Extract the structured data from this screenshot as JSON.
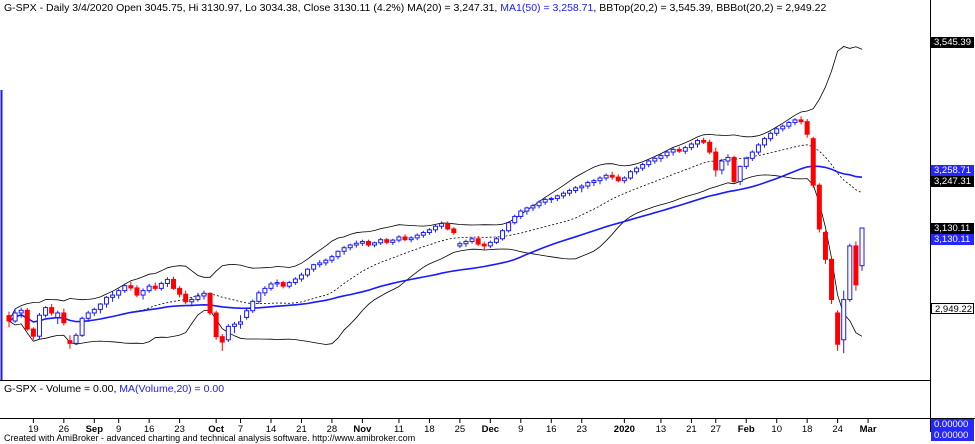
{
  "header": {
    "symbol": "G-SPX",
    "prefix": " - Daily 3/4/2020 Open 3045.75, Hi 3130.97, Lo 3034.38, Close 3130.11 (4.2%) MA(20) = 3,247.31, ",
    "ma50_text": "MA1(50) = 3,258.71",
    "suffix": ", BBTop(20,2) = 3,545.39, BBBot(20,2) = 2,949.22"
  },
  "volume_header": {
    "symbol": "G-SPX",
    "volume_text": " - Volume = 0.00, ",
    "ma_text": "MA(Volume,20) = 0.00"
  },
  "footer": "Created with AmiBroker - advanced charting and technical analysis software. http://www.amibroker.com",
  "price_labels": [
    {
      "text": "3,545.39",
      "value": 3545.39,
      "style": "black"
    },
    {
      "text": "3,258.71",
      "value": 3258.71,
      "style": "blue"
    },
    {
      "text": "3,247.31",
      "value": 3247.31,
      "style": "black"
    },
    {
      "text": "3,130.11",
      "value": 3130.11,
      "style": "black"
    },
    {
      "text": "3,130.11",
      "value": 3130.11,
      "style": "blue"
    },
    {
      "text": "2,949.22",
      "value": 2949.22,
      "style": "white"
    }
  ],
  "volume_labels": [
    {
      "text": "0.00000",
      "style": "blue"
    },
    {
      "text": "0.00000",
      "style": "blue"
    }
  ],
  "colors": {
    "up": "#1a1aff",
    "down": "#ff0000",
    "ma50": "#1a1aff",
    "bands": "#000000",
    "ma20": "#000000"
  },
  "chart_data": {
    "type": "candlestick",
    "price_range": [
      2790,
      3600
    ],
    "x_ticks": [
      {
        "label": "19",
        "index": 4,
        "bold": false
      },
      {
        "label": "26",
        "index": 9,
        "bold": false
      },
      {
        "label": "Sep",
        "index": 14,
        "bold": true
      },
      {
        "label": "9",
        "index": 18,
        "bold": false
      },
      {
        "label": "16",
        "index": 23,
        "bold": false
      },
      {
        "label": "23",
        "index": 28,
        "bold": false
      },
      {
        "label": "Oct",
        "index": 34,
        "bold": true
      },
      {
        "label": "7",
        "index": 38,
        "bold": false
      },
      {
        "label": "14",
        "index": 43,
        "bold": false
      },
      {
        "label": "21",
        "index": 48,
        "bold": false
      },
      {
        "label": "28",
        "index": 53,
        "bold": false
      },
      {
        "label": "Nov",
        "index": 58,
        "bold": true
      },
      {
        "label": "11",
        "index": 64,
        "bold": false
      },
      {
        "label": "18",
        "index": 69,
        "bold": false
      },
      {
        "label": "25",
        "index": 74,
        "bold": false
      },
      {
        "label": "Dec",
        "index": 79,
        "bold": true
      },
      {
        "label": "9",
        "index": 84,
        "bold": false
      },
      {
        "label": "16",
        "index": 89,
        "bold": false
      },
      {
        "label": "23",
        "index": 94,
        "bold": false
      },
      {
        "label": "2020",
        "index": 101,
        "bold": true
      },
      {
        "label": "13",
        "index": 107,
        "bold": false
      },
      {
        "label": "21",
        "index": 112,
        "bold": false
      },
      {
        "label": "27",
        "index": 116,
        "bold": false
      },
      {
        "label": "Feb",
        "index": 121,
        "bold": true
      },
      {
        "label": "10",
        "index": 126,
        "bold": false
      },
      {
        "label": "18",
        "index": 131,
        "bold": false
      },
      {
        "label": "24",
        "index": 136,
        "bold": false
      },
      {
        "label": "Mar",
        "index": 141,
        "bold": true
      }
    ],
    "candles": [
      [
        2934,
        2943,
        2908,
        2922
      ],
      [
        2922,
        2950,
        2918,
        2940
      ],
      [
        2940,
        2952,
        2929,
        2946
      ],
      [
        2946,
        2951,
        2900,
        2904
      ],
      [
        2904,
        2908,
        2880,
        2888
      ],
      [
        2888,
        2940,
        2882,
        2935
      ],
      [
        2935,
        2955,
        2930,
        2952
      ],
      [
        2952,
        2960,
        2934,
        2940
      ],
      [
        2930,
        2945,
        2915,
        2940
      ],
      [
        2940,
        2950,
        2912,
        2918
      ],
      [
        2878,
        2890,
        2860,
        2872
      ],
      [
        2872,
        2895,
        2868,
        2890
      ],
      [
        2890,
        2932,
        2886,
        2928
      ],
      [
        2928,
        2945,
        2920,
        2940
      ],
      [
        2940,
        2952,
        2933,
        2948
      ],
      [
        2948,
        2962,
        2939,
        2960
      ],
      [
        2960,
        2978,
        2952,
        2975
      ],
      [
        2975,
        2988,
        2965,
        2980
      ],
      [
        2980,
        2994,
        2972,
        2990
      ],
      [
        2990,
        3006,
        2985,
        3001
      ],
      [
        3001,
        3010,
        2990,
        2996
      ],
      [
        2996,
        3002,
        2975,
        2980
      ],
      [
        2980,
        2995,
        2970,
        2990
      ],
      [
        2990,
        3005,
        2985,
        3000
      ],
      [
        3000,
        3008,
        2990,
        2995
      ],
      [
        2995,
        3010,
        2990,
        3006
      ],
      [
        3006,
        3020,
        2998,
        3015
      ],
      [
        3015,
        3021,
        2992,
        2995
      ],
      [
        2995,
        3000,
        2975,
        2982
      ],
      [
        2982,
        2990,
        2960,
        2965
      ],
      [
        2965,
        2975,
        2955,
        2970
      ],
      [
        2970,
        2985,
        2965,
        2978
      ],
      [
        2978,
        2990,
        2970,
        2984
      ],
      [
        2984,
        2986,
        2935,
        2940
      ],
      [
        2940,
        2945,
        2880,
        2887
      ],
      [
        2887,
        2893,
        2855,
        2875
      ],
      [
        2880,
        2915,
        2875,
        2910
      ],
      [
        2910,
        2920,
        2895,
        2915
      ],
      [
        2915,
        2935,
        2905,
        2920
      ],
      [
        2930,
        2950,
        2925,
        2945
      ],
      [
        2945,
        2970,
        2940,
        2966
      ],
      [
        2966,
        2990,
        2960,
        2985
      ],
      [
        2985,
        3000,
        2978,
        2995
      ],
      [
        2995,
        3010,
        2990,
        3005
      ],
      [
        3005,
        3015,
        2998,
        3008
      ],
      [
        3008,
        3012,
        2995,
        3000
      ],
      [
        3000,
        3012,
        2995,
        3008
      ],
      [
        3008,
        3020,
        3003,
        3016
      ],
      [
        3016,
        3030,
        3010,
        3025
      ],
      [
        3025,
        3040,
        3020,
        3038
      ],
      [
        3038,
        3050,
        3032,
        3048
      ],
      [
        3048,
        3058,
        3042,
        3052
      ],
      [
        3052,
        3062,
        3046,
        3058
      ],
      [
        3058,
        3070,
        3052,
        3066
      ],
      [
        3066,
        3080,
        3060,
        3078
      ],
      [
        3078,
        3090,
        3070,
        3086
      ],
      [
        3086,
        3095,
        3080,
        3092
      ],
      [
        3092,
        3102,
        3086,
        3096
      ],
      [
        3096,
        3104,
        3090,
        3100
      ],
      [
        3100,
        3104,
        3088,
        3092
      ],
      [
        3092,
        3100,
        3087,
        3097
      ],
      [
        3097,
        3108,
        3092,
        3104
      ],
      [
        3104,
        3108,
        3094,
        3098
      ],
      [
        3098,
        3106,
        3092,
        3103
      ],
      [
        3103,
        3114,
        3098,
        3110
      ],
      [
        3110,
        3116,
        3100,
        3104
      ],
      [
        3104,
        3112,
        3098,
        3108
      ],
      [
        3108,
        3118,
        3103,
        3114
      ],
      [
        3114,
        3124,
        3108,
        3120
      ],
      [
        3120,
        3130,
        3115,
        3126
      ],
      [
        3126,
        3138,
        3120,
        3134
      ],
      [
        3134,
        3145,
        3128,
        3140
      ],
      [
        3140,
        3145,
        3125,
        3128
      ],
      [
        3128,
        3132,
        3115,
        3120
      ],
      [
        3090,
        3100,
        3085,
        3095
      ],
      [
        3095,
        3104,
        3088,
        3100
      ],
      [
        3100,
        3110,
        3095,
        3106
      ],
      [
        3106,
        3112,
        3090,
        3094
      ],
      [
        3094,
        3100,
        3082,
        3090
      ],
      [
        3090,
        3102,
        3085,
        3098
      ],
      [
        3098,
        3110,
        3094,
        3106
      ],
      [
        3106,
        3128,
        3102,
        3124
      ],
      [
        3124,
        3145,
        3120,
        3142
      ],
      [
        3142,
        3160,
        3138,
        3156
      ],
      [
        3156,
        3172,
        3150,
        3168
      ],
      [
        3168,
        3178,
        3160,
        3175
      ],
      [
        3175,
        3184,
        3168,
        3180
      ],
      [
        3180,
        3192,
        3174,
        3188
      ],
      [
        3188,
        3198,
        3182,
        3194
      ],
      [
        3194,
        3200,
        3186,
        3196
      ],
      [
        3196,
        3205,
        3190,
        3202
      ],
      [
        3202,
        3212,
        3196,
        3208
      ],
      [
        3208,
        3218,
        3202,
        3214
      ],
      [
        3214,
        3224,
        3208,
        3220
      ],
      [
        3220,
        3228,
        3210,
        3224
      ],
      [
        3224,
        3236,
        3218,
        3232
      ],
      [
        3232,
        3240,
        3224,
        3236
      ],
      [
        3236,
        3246,
        3228,
        3242
      ],
      [
        3242,
        3252,
        3236,
        3248
      ],
      [
        3248,
        3256,
        3238,
        3244
      ],
      [
        3244,
        3250,
        3232,
        3236
      ],
      [
        3236,
        3246,
        3230,
        3242
      ],
      [
        3242,
        3260,
        3238,
        3256
      ],
      [
        3256,
        3268,
        3250,
        3264
      ],
      [
        3264,
        3276,
        3258,
        3272
      ],
      [
        3272,
        3284,
        3266,
        3280
      ],
      [
        3280,
        3290,
        3274,
        3286
      ],
      [
        3286,
        3296,
        3278,
        3292
      ],
      [
        3292,
        3304,
        3286,
        3300
      ],
      [
        3300,
        3310,
        3292,
        3306
      ],
      [
        3306,
        3312,
        3298,
        3302
      ],
      [
        3302,
        3314,
        3296,
        3310
      ],
      [
        3310,
        3322,
        3304,
        3318
      ],
      [
        3318,
        3330,
        3310,
        3326
      ],
      [
        3326,
        3332,
        3318,
        3322
      ],
      [
        3322,
        3328,
        3295,
        3300
      ],
      [
        3300,
        3310,
        3245,
        3260
      ],
      [
        3260,
        3285,
        3250,
        3280
      ],
      [
        3280,
        3295,
        3270,
        3288
      ],
      [
        3288,
        3292,
        3230,
        3234
      ],
      [
        3234,
        3270,
        3226,
        3268
      ],
      [
        3268,
        3290,
        3262,
        3286
      ],
      [
        3286,
        3304,
        3280,
        3300
      ],
      [
        3300,
        3320,
        3294,
        3316
      ],
      [
        3316,
        3334,
        3310,
        3330
      ],
      [
        3330,
        3346,
        3324,
        3342
      ],
      [
        3342,
        3356,
        3336,
        3352
      ],
      [
        3352,
        3362,
        3346,
        3358
      ],
      [
        3358,
        3370,
        3352,
        3366
      ],
      [
        3366,
        3376,
        3360,
        3372
      ],
      [
        3372,
        3380,
        3362,
        3368
      ],
      [
        3368,
        3374,
        3332,
        3340
      ],
      [
        3330,
        3334,
        3220,
        3226
      ],
      [
        3226,
        3230,
        3120,
        3128
      ],
      [
        3120,
        3124,
        3050,
        3060
      ],
      [
        3060,
        3064,
        2960,
        2970
      ],
      [
        2940,
        2946,
        2855,
        2870
      ],
      [
        2880,
        2990,
        2850,
        2970
      ],
      [
        2970,
        3095,
        2965,
        3090
      ],
      [
        3090,
        3100,
        2990,
        3003
      ],
      [
        3045.75,
        3130.97,
        3034.38,
        3130.11
      ]
    ]
  }
}
